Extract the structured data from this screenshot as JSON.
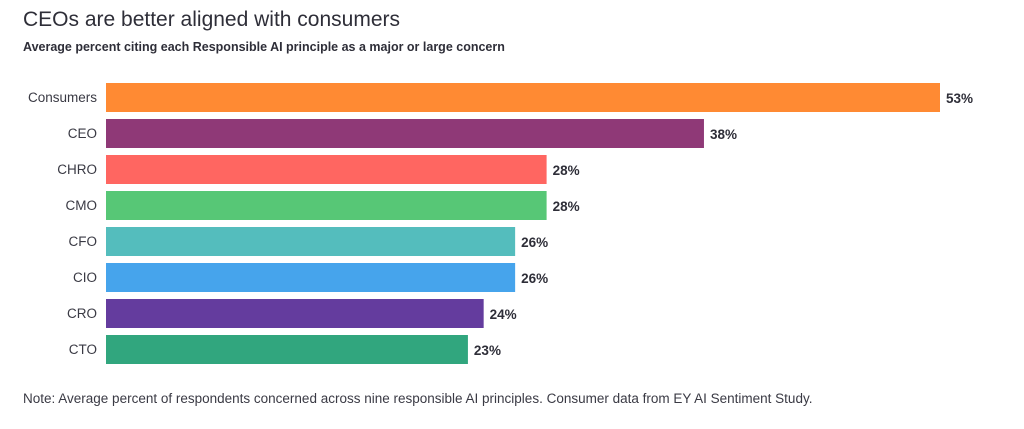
{
  "title": "CEOs are better aligned with consumers",
  "subtitle": "Average percent citing each Responsible AI principle as a major or large concern",
  "note": "Note: Average percent of respondents concerned across nine responsible AI principles. Consumer data from EY AI Sentiment Study.",
  "chart_data": {
    "type": "bar",
    "orientation": "horizontal",
    "title": "CEOs are better aligned with consumers",
    "subtitle": "Average percent citing each Responsible AI principle as a major or large concern",
    "categories": [
      "Consumers",
      "CEO",
      "CHRO",
      "CMO",
      "CFO",
      "CIO",
      "CRO",
      "CTO"
    ],
    "values": [
      53,
      38,
      28,
      28,
      26,
      26,
      24,
      23
    ],
    "value_labels": [
      "53%",
      "38%",
      "28%",
      "28%",
      "26%",
      "26%",
      "24%",
      "23%"
    ],
    "colors": [
      "#ff8a33",
      "#8f3977",
      "#ff6661",
      "#57c776",
      "#54bdbd",
      "#46a4ec",
      "#643c9e",
      "#31a67e"
    ],
    "unit": "%",
    "xlim": [
      0,
      53
    ],
    "grid": false,
    "legend": "none"
  }
}
